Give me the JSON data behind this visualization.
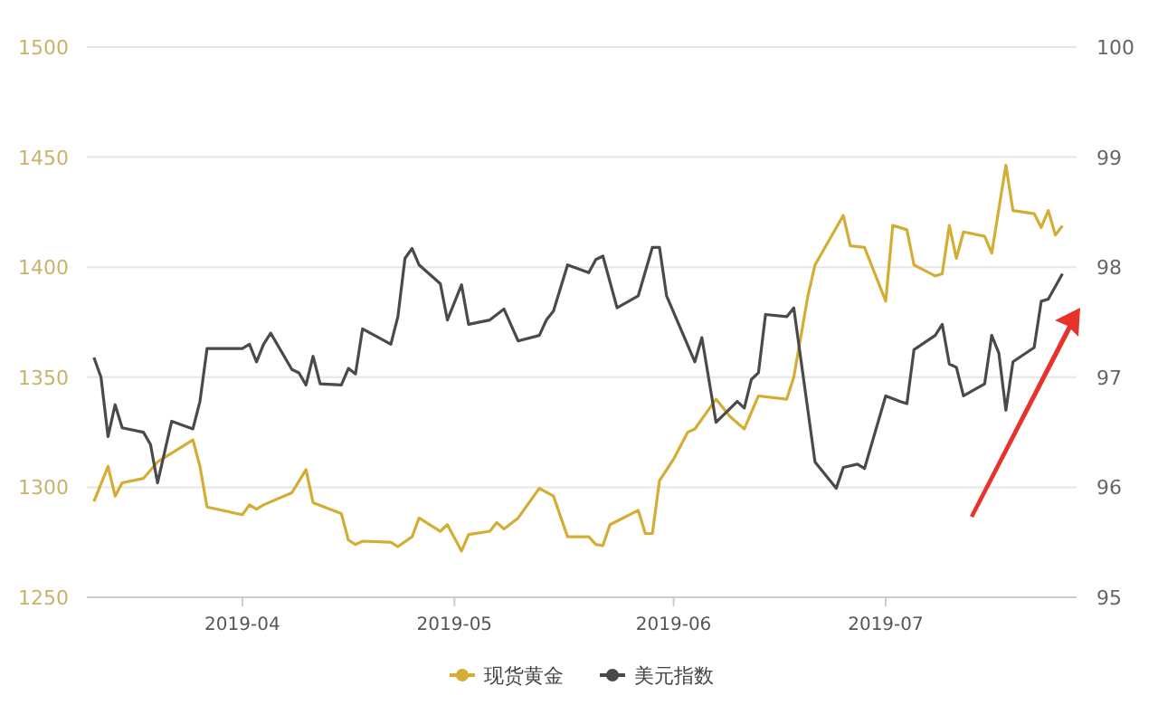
{
  "chart_data": {
    "type": "line",
    "xlim": [
      "2019-03-10",
      "2019-07-28"
    ],
    "xticks": [
      {
        "value": "2019-04-01",
        "label": "2019-04"
      },
      {
        "value": "2019-05-01",
        "label": "2019-05"
      },
      {
        "value": "2019-06-01",
        "label": "2019-06"
      },
      {
        "value": "2019-07-01",
        "label": "2019-07"
      }
    ],
    "ylim": [
      1250,
      1500
    ],
    "yticks": [
      1250,
      1300,
      1350,
      1400,
      1450,
      1500
    ],
    "y2lim": [
      95,
      100
    ],
    "y2ticks": [
      95,
      96,
      97,
      98,
      99,
      100
    ],
    "grid": "y",
    "legend": "bottom",
    "series": [
      {
        "name": "现货黄金",
        "color": "#d4ad34",
        "x": [
          "2019-03-11",
          "2019-03-13",
          "2019-03-14",
          "2019-03-15",
          "2019-03-18",
          "2019-03-20",
          "2019-03-25",
          "2019-03-26",
          "2019-03-27",
          "2019-04-01",
          "2019-04-02",
          "2019-04-03",
          "2019-04-04",
          "2019-04-08",
          "2019-04-10",
          "2019-04-11",
          "2019-04-15",
          "2019-04-16",
          "2019-04-17",
          "2019-04-18",
          "2019-04-22",
          "2019-04-23",
          "2019-04-25",
          "2019-04-26",
          "2019-04-29",
          "2019-04-30",
          "2019-05-02",
          "2019-05-03",
          "2019-05-06",
          "2019-05-07",
          "2019-05-08",
          "2019-05-10",
          "2019-05-13",
          "2019-05-15",
          "2019-05-17",
          "2019-05-20",
          "2019-05-21",
          "2019-05-22",
          "2019-05-23",
          "2019-05-27",
          "2019-05-28",
          "2019-05-29",
          "2019-05-30",
          "2019-06-01",
          "2019-06-03",
          "2019-06-04",
          "2019-06-07",
          "2019-06-09",
          "2019-06-11",
          "2019-06-13",
          "2019-06-17",
          "2019-06-18",
          "2019-06-20",
          "2019-06-21",
          "2019-06-25",
          "2019-06-26",
          "2019-06-28",
          "2019-07-01",
          "2019-07-02",
          "2019-07-04",
          "2019-07-05",
          "2019-07-08",
          "2019-07-09",
          "2019-07-10",
          "2019-07-11",
          "2019-07-12",
          "2019-07-15",
          "2019-07-16",
          "2019-07-18",
          "2019-07-19",
          "2019-07-22",
          "2019-07-23",
          "2019-07-24",
          "2019-07-25",
          "2019-07-26"
        ],
        "values": [
          1293.5,
          1309.5,
          1296,
          1302,
          1304,
          1311.5,
          1321.5,
          1309.5,
          1291,
          1287.5,
          1292,
          1290,
          1292,
          1297.5,
          1308,
          1293,
          1288,
          1276,
          1274,
          1275.5,
          1275,
          1273,
          1277.5,
          1286,
          1280,
          1283,
          1271,
          1278.5,
          1280,
          1284,
          1281,
          1286,
          1299.5,
          1296,
          1277.5,
          1277.5,
          1274,
          1273.5,
          1283,
          1289.5,
          1279,
          1279,
          1303,
          1312.8,
          1325,
          1326.5,
          1340,
          1332,
          1326.5,
          1341.5,
          1340,
          1350,
          1387,
          1401,
          1423.5,
          1409.7,
          1409,
          1384.5,
          1419,
          1417,
          1401,
          1396,
          1397,
          1419,
          1404,
          1416,
          1414,
          1406.4,
          1446.3,
          1425.7,
          1424.3,
          1418,
          1425.7,
          1414.6,
          1418.8
        ]
      },
      {
        "name": "美元指数",
        "color": "#4a4a4a",
        "axis": "y2",
        "x": [
          "2019-03-11",
          "2019-03-12",
          "2019-03-13",
          "2019-03-14",
          "2019-03-15",
          "2019-03-18",
          "2019-03-19",
          "2019-03-20",
          "2019-03-22",
          "2019-03-25",
          "2019-03-26",
          "2019-03-27",
          "2019-04-01",
          "2019-04-02",
          "2019-04-03",
          "2019-04-04",
          "2019-04-05",
          "2019-04-08",
          "2019-04-09",
          "2019-04-10",
          "2019-04-11",
          "2019-04-12",
          "2019-04-15",
          "2019-04-16",
          "2019-04-17",
          "2019-04-18",
          "2019-04-22",
          "2019-04-23",
          "2019-04-24",
          "2019-04-25",
          "2019-04-26",
          "2019-04-29",
          "2019-04-30",
          "2019-05-02",
          "2019-05-03",
          "2019-05-06",
          "2019-05-08",
          "2019-05-10",
          "2019-05-13",
          "2019-05-14",
          "2019-05-15",
          "2019-05-17",
          "2019-05-20",
          "2019-05-21",
          "2019-05-22",
          "2019-05-24",
          "2019-05-27",
          "2019-05-29",
          "2019-05-30",
          "2019-05-31",
          "2019-06-04",
          "2019-06-05",
          "2019-06-07",
          "2019-06-10",
          "2019-06-11",
          "2019-06-12",
          "2019-06-13",
          "2019-06-14",
          "2019-06-17",
          "2019-06-18",
          "2019-06-21",
          "2019-06-24",
          "2019-06-25",
          "2019-06-27",
          "2019-06-28",
          "2019-07-01",
          "2019-07-03",
          "2019-07-04",
          "2019-07-05",
          "2019-07-08",
          "2019-07-09",
          "2019-07-10",
          "2019-07-11",
          "2019-07-12",
          "2019-07-15",
          "2019-07-16",
          "2019-07-17",
          "2019-07-18",
          "2019-07-19",
          "2019-07-22",
          "2019-07-23",
          "2019-07-24",
          "2019-07-26"
        ],
        "values": [
          97.18,
          97.0,
          96.46,
          96.75,
          96.54,
          96.5,
          96.39,
          96.04,
          96.6,
          96.53,
          96.78,
          97.26,
          97.26,
          97.3,
          97.14,
          97.3,
          97.4,
          97.07,
          97.04,
          96.93,
          97.19,
          96.94,
          96.93,
          97.08,
          97.03,
          97.44,
          97.3,
          97.55,
          98.08,
          98.17,
          98.02,
          97.85,
          97.52,
          97.84,
          97.48,
          97.52,
          97.62,
          97.33,
          97.38,
          97.52,
          97.6,
          98.02,
          97.95,
          98.07,
          98.1,
          97.63,
          97.74,
          98.18,
          98.18,
          97.74,
          97.14,
          97.36,
          96.59,
          96.78,
          96.72,
          96.98,
          97.04,
          97.57,
          97.55,
          97.63,
          96.23,
          95.99,
          96.18,
          96.21,
          96.17,
          96.83,
          96.78,
          96.76,
          97.25,
          97.38,
          97.48,
          97.12,
          97.09,
          96.83,
          96.94,
          97.38,
          97.22,
          96.7,
          97.14,
          97.27,
          97.69,
          97.71,
          97.94
        ]
      }
    ]
  }
}
